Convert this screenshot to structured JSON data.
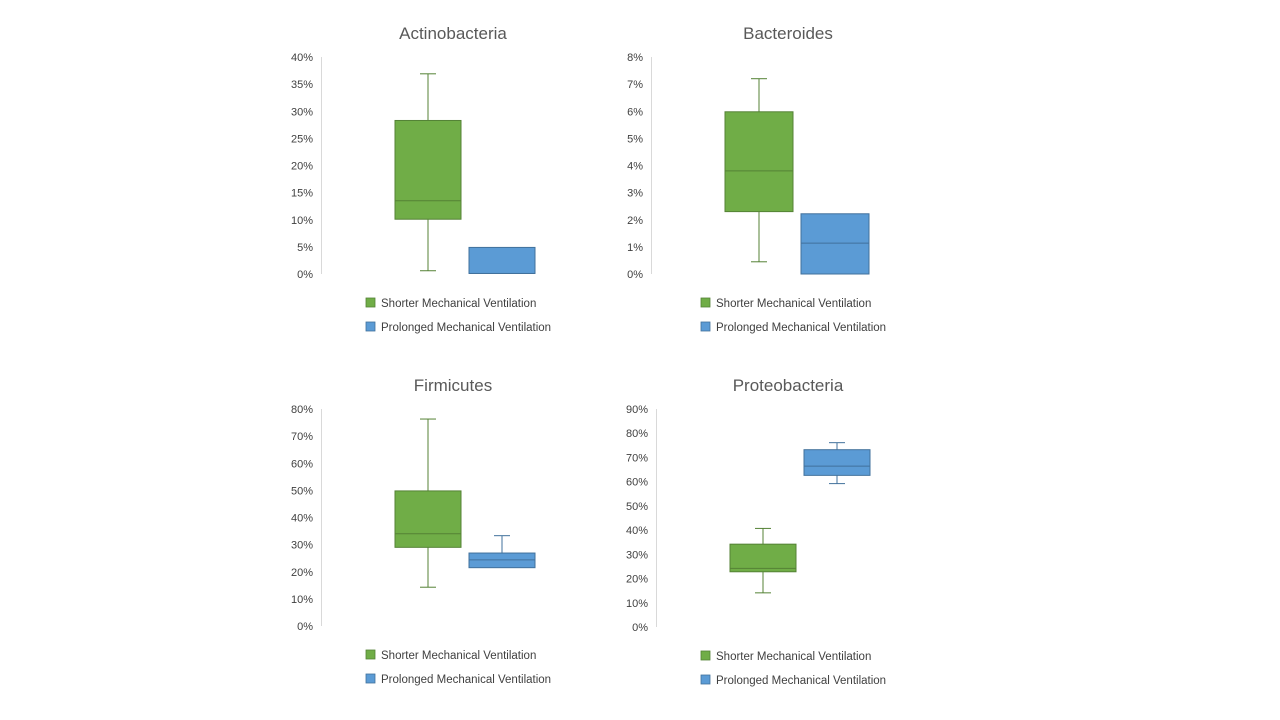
{
  "chart_data": [
    {
      "type": "box",
      "title": "Actinobacteria",
      "ylim": [
        0,
        40
      ],
      "ytick_step": 5,
      "ytick_suffix": "%",
      "series": [
        {
          "name": "Shorter Mechanical Ventilation",
          "color": "#70AD47",
          "stroke": "#548235",
          "min": 0.6,
          "q1": 10.1,
          "median": 13.5,
          "q3": 28.3,
          "max": 36.9
        },
        {
          "name": "Prolonged Mechanical Ventilation",
          "color": "#5B9BD5",
          "stroke": "#41719C",
          "min": 0.1,
          "q1": 0.1,
          "median": 0.1,
          "q3": 4.9,
          "max": 4.9
        }
      ]
    },
    {
      "type": "box",
      "title": "Bacteroides",
      "ylim": [
        0,
        8
      ],
      "ytick_step": 1,
      "ytick_suffix": "%",
      "series": [
        {
          "name": "Shorter Mechanical Ventilation",
          "color": "#70AD47",
          "stroke": "#548235",
          "min": 0.45,
          "q1": 2.3,
          "median": 3.8,
          "q3": 5.98,
          "max": 7.2
        },
        {
          "name": "Prolonged Mechanical Ventilation",
          "color": "#5B9BD5",
          "stroke": "#41719C",
          "min": 0.0,
          "q1": 0.0,
          "median": 1.14,
          "q3": 2.22,
          "max": 2.22
        }
      ]
    },
    {
      "type": "box",
      "title": "Firmicutes",
      "ylim": [
        0,
        80
      ],
      "ytick_step": 10,
      "ytick_suffix": "%",
      "series": [
        {
          "name": "Shorter Mechanical Ventilation",
          "color": "#70AD47",
          "stroke": "#548235",
          "min": 14.3,
          "q1": 29.0,
          "median": 34.0,
          "q3": 49.8,
          "max": 76.3
        },
        {
          "name": "Prolonged Mechanical Ventilation",
          "color": "#5B9BD5",
          "stroke": "#41719C",
          "min": 21.5,
          "q1": 21.5,
          "median": 24.4,
          "q3": 26.9,
          "max": 33.3
        }
      ]
    },
    {
      "type": "box",
      "title": "Proteobacteria",
      "ylim": [
        0,
        90
      ],
      "ytick_step": 10,
      "ytick_suffix": "%",
      "series": [
        {
          "name": "Shorter Mechanical Ventilation",
          "color": "#70AD47",
          "stroke": "#548235",
          "min": 14.1,
          "q1": 22.8,
          "median": 24.2,
          "q3": 34.2,
          "max": 40.7
        },
        {
          "name": "Prolonged Mechanical Ventilation",
          "color": "#5B9BD5",
          "stroke": "#41719C",
          "min": 59.2,
          "q1": 62.6,
          "median": 66.4,
          "q3": 73.2,
          "max": 76.1
        }
      ]
    }
  ]
}
